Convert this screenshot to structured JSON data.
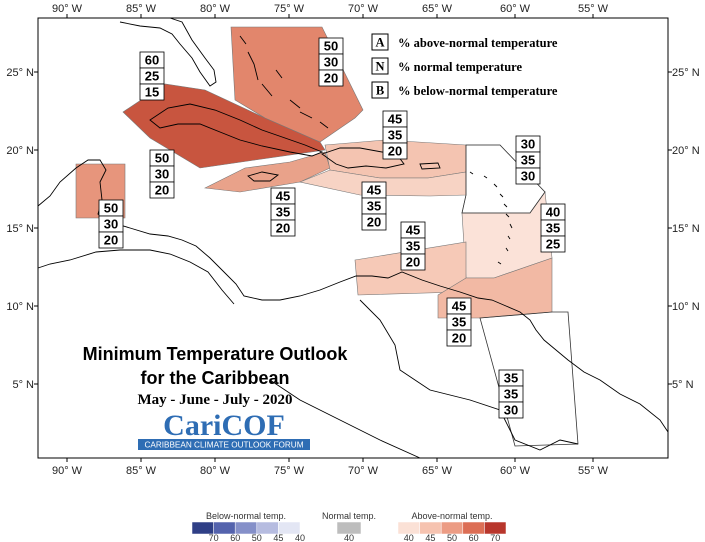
{
  "title": {
    "line1": "Minimum Temperature Outlook",
    "line2": "for the Caribbean",
    "period": "May - June - July - 2020"
  },
  "logo": {
    "name": "CariCOF",
    "subtitle": "CARIBBEAN CLIMATE OUTLOOK FORUM"
  },
  "key": [
    {
      "letter": "A",
      "label": "% above-normal temperature"
    },
    {
      "letter": "N",
      "label": "% normal temperature"
    },
    {
      "letter": "B",
      "label": "% below-normal temperature"
    }
  ],
  "axes": {
    "lon_labels": [
      "90° W",
      "85° W",
      "80° W",
      "75° W",
      "70° W",
      "65° W",
      "60° W",
      "55° W"
    ],
    "lat_labels": [
      "25° N",
      "20° N",
      "15° N",
      "10° N",
      "5° N"
    ]
  },
  "regions": [
    {
      "id": "western-cuba-caymans",
      "values": [
        "60",
        "25",
        "15"
      ],
      "fill": "#c8553f"
    },
    {
      "id": "bahamas",
      "values": [
        "50",
        "30",
        "20"
      ],
      "fill": "#e2866c"
    },
    {
      "id": "jamaica",
      "values": [
        "50",
        "30",
        "20"
      ],
      "fill": "#e9a28a"
    },
    {
      "id": "hispaniola",
      "values": [
        "45",
        "35",
        "20"
      ],
      "fill": "#f4c4b1"
    },
    {
      "id": "caribbean-sea-central",
      "values": [
        "45",
        "35",
        "20"
      ],
      "fill": "#f7d3c4"
    },
    {
      "id": "puerto-rico",
      "values": [
        "45",
        "35",
        "20"
      ],
      "fill": "#f7d3c4"
    },
    {
      "id": "belize",
      "values": [
        "50",
        "30",
        "20"
      ],
      "fill": "#e7957c"
    },
    {
      "id": "northern-leewards",
      "values": [
        "30",
        "35",
        "30"
      ],
      "fill": "#ffffff"
    },
    {
      "id": "windwards",
      "values": [
        "40",
        "35",
        "25"
      ],
      "fill": "#fbe2d8"
    },
    {
      "id": "abc-islands",
      "values": [
        "45",
        "35",
        "20"
      ],
      "fill": "#f6c9b7"
    },
    {
      "id": "trinidad",
      "values": [
        "45",
        "35",
        "20"
      ],
      "fill": "#f2b9a4"
    },
    {
      "id": "guianas",
      "values": [
        "35",
        "35",
        "30"
      ],
      "fill": "#ffffff"
    }
  ],
  "colorbars": [
    {
      "title": "Below-normal temp.",
      "ticks": [
        "70",
        "60",
        "50",
        "45",
        "40"
      ],
      "colors": [
        "#2f3f86",
        "#5463ad",
        "#8590c9",
        "#b6bce0",
        "#e3e6f4"
      ]
    },
    {
      "title": "Normal temp.",
      "ticks": [
        "40"
      ],
      "colors": [
        "#bdbdbd"
      ]
    },
    {
      "title": "Above-normal temp.",
      "ticks": [
        "40",
        "45",
        "50",
        "60",
        "70"
      ],
      "colors": [
        "#fbe1d6",
        "#f6c3b0",
        "#ec9c84",
        "#dc6e55",
        "#b8362c"
      ]
    }
  ]
}
